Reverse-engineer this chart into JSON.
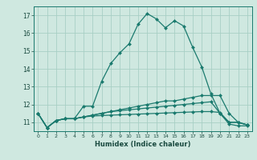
{
  "xlabel": "Humidex (Indice chaleur)",
  "background_color": "#cfe8e0",
  "grid_color": "#a8cfc5",
  "line_color": "#1a7a6e",
  "xlim": [
    -0.5,
    23.5
  ],
  "ylim": [
    10.5,
    17.5
  ],
  "yticks": [
    11,
    12,
    13,
    14,
    15,
    16,
    17
  ],
  "xticks": [
    0,
    1,
    2,
    3,
    4,
    5,
    6,
    7,
    8,
    9,
    10,
    11,
    12,
    13,
    14,
    15,
    16,
    17,
    18,
    19,
    20,
    21,
    22,
    23
  ],
  "lines": [
    {
      "x": [
        0,
        1,
        2,
        3,
        4,
        5,
        6,
        7,
        8,
        9,
        10,
        11,
        12,
        13,
        14,
        15,
        16,
        17,
        18,
        19,
        20,
        21,
        22,
        23
      ],
      "y": [
        11.5,
        10.7,
        11.1,
        11.2,
        11.2,
        11.9,
        11.9,
        13.3,
        14.3,
        14.9,
        15.4,
        16.5,
        17.1,
        16.8,
        16.3,
        16.7,
        16.4,
        15.2,
        14.1,
        12.6,
        11.5,
        10.9,
        10.8,
        10.8
      ],
      "marker": "D",
      "markersize": 2.0,
      "linewidth": 0.9
    },
    {
      "x": [
        0,
        1,
        2,
        3,
        4,
        5,
        6,
        7,
        8,
        9,
        10,
        11,
        12,
        13,
        14,
        15,
        16,
        17,
        18,
        19,
        20,
        21,
        22,
        23
      ],
      "y": [
        11.5,
        10.7,
        11.1,
        11.2,
        11.2,
        11.3,
        11.4,
        11.5,
        11.6,
        11.7,
        11.8,
        11.9,
        12.0,
        12.1,
        12.2,
        12.2,
        12.3,
        12.4,
        12.5,
        12.5,
        12.5,
        11.5,
        11.0,
        10.85
      ],
      "marker": "D",
      "markersize": 2.0,
      "linewidth": 0.9
    },
    {
      "x": [
        0,
        1,
        2,
        3,
        4,
        5,
        6,
        7,
        8,
        9,
        10,
        11,
        12,
        13,
        14,
        15,
        16,
        17,
        18,
        19,
        20,
        21,
        22,
        23
      ],
      "y": [
        11.5,
        10.7,
        11.1,
        11.2,
        11.2,
        11.3,
        11.4,
        11.5,
        11.6,
        11.65,
        11.7,
        11.75,
        11.8,
        11.85,
        11.9,
        11.95,
        12.0,
        12.05,
        12.1,
        12.15,
        11.5,
        11.0,
        11.0,
        10.85
      ],
      "marker": "D",
      "markersize": 2.0,
      "linewidth": 0.9
    },
    {
      "x": [
        0,
        1,
        2,
        3,
        4,
        5,
        6,
        7,
        8,
        9,
        10,
        11,
        12,
        13,
        14,
        15,
        16,
        17,
        18,
        19,
        20,
        21,
        22,
        23
      ],
      "y": [
        11.5,
        10.7,
        11.1,
        11.2,
        11.2,
        11.3,
        11.35,
        11.38,
        11.4,
        11.42,
        11.44,
        11.46,
        11.48,
        11.5,
        11.52,
        11.54,
        11.56,
        11.58,
        11.6,
        11.6,
        11.55,
        11.0,
        11.0,
        10.85
      ],
      "marker": "D",
      "markersize": 2.0,
      "linewidth": 0.9
    }
  ]
}
